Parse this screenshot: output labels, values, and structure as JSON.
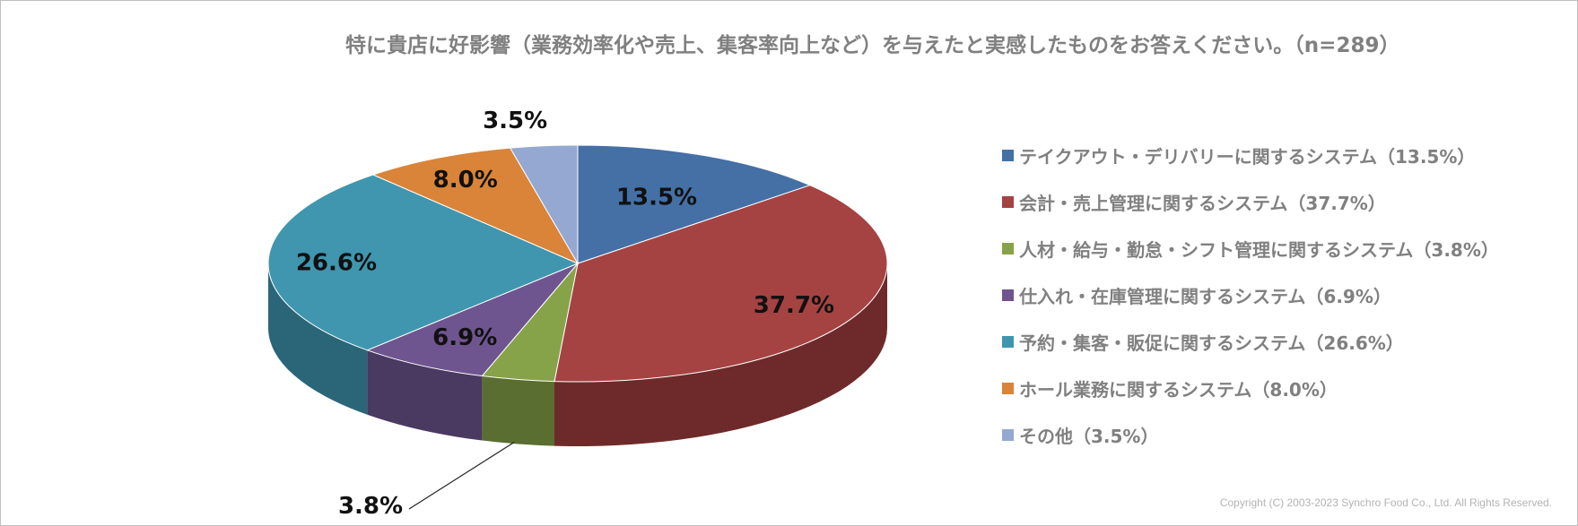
{
  "chart_data": {
    "type": "pie",
    "title": "特に貴店に好影響（業務効率化や売上、集客率向上など）を与えたと実感したものをお答えください。（n=289）",
    "start_angle": "12 o'clock",
    "direction": "clockwise",
    "3d": true,
    "legend_position": "right",
    "slices": [
      {
        "label": "テイクアウト・デリバリーに関するシステム（13.5%）",
        "value": 13.5,
        "data_label": "13.5%",
        "color": "#4470A5",
        "side_color": "#2E4D74"
      },
      {
        "label": "会計・売上管理に関するシステム（37.7%）",
        "value": 37.7,
        "data_label": "37.7%",
        "color": "#A54342",
        "side_color": "#6E2A2A"
      },
      {
        "label": "人材・給与・勤怠・シフト管理に関するシステム（3.8%）",
        "value": 3.8,
        "data_label": "3.8%",
        "color": "#87A34A",
        "side_color": "#5A6E31"
      },
      {
        "label": "仕入れ・在庫管理に関するシステム（6.9%）",
        "value": 6.9,
        "data_label": "6.9%",
        "color": "#6F5590",
        "side_color": "#4A3961"
      },
      {
        "label": "予約・集客・販促に関するシステム（26.6%）",
        "value": 26.6,
        "data_label": "26.6%",
        "color": "#3F96AE",
        "side_color": "#2B6678"
      },
      {
        "label": "ホール業務に関するシステム（8.0%）",
        "value": 8.0,
        "data_label": "8.0%",
        "color": "#D98439",
        "side_color": "#935A27"
      },
      {
        "label": "その他（3.5%）",
        "value": 3.5,
        "data_label": "3.5%",
        "color": "#94A8D1",
        "side_color": "#66768F"
      }
    ]
  },
  "footer": {
    "copyright": "Copyright (C) 2003-2023  Synchro Food Co., Ltd. All Rights Reserved."
  }
}
